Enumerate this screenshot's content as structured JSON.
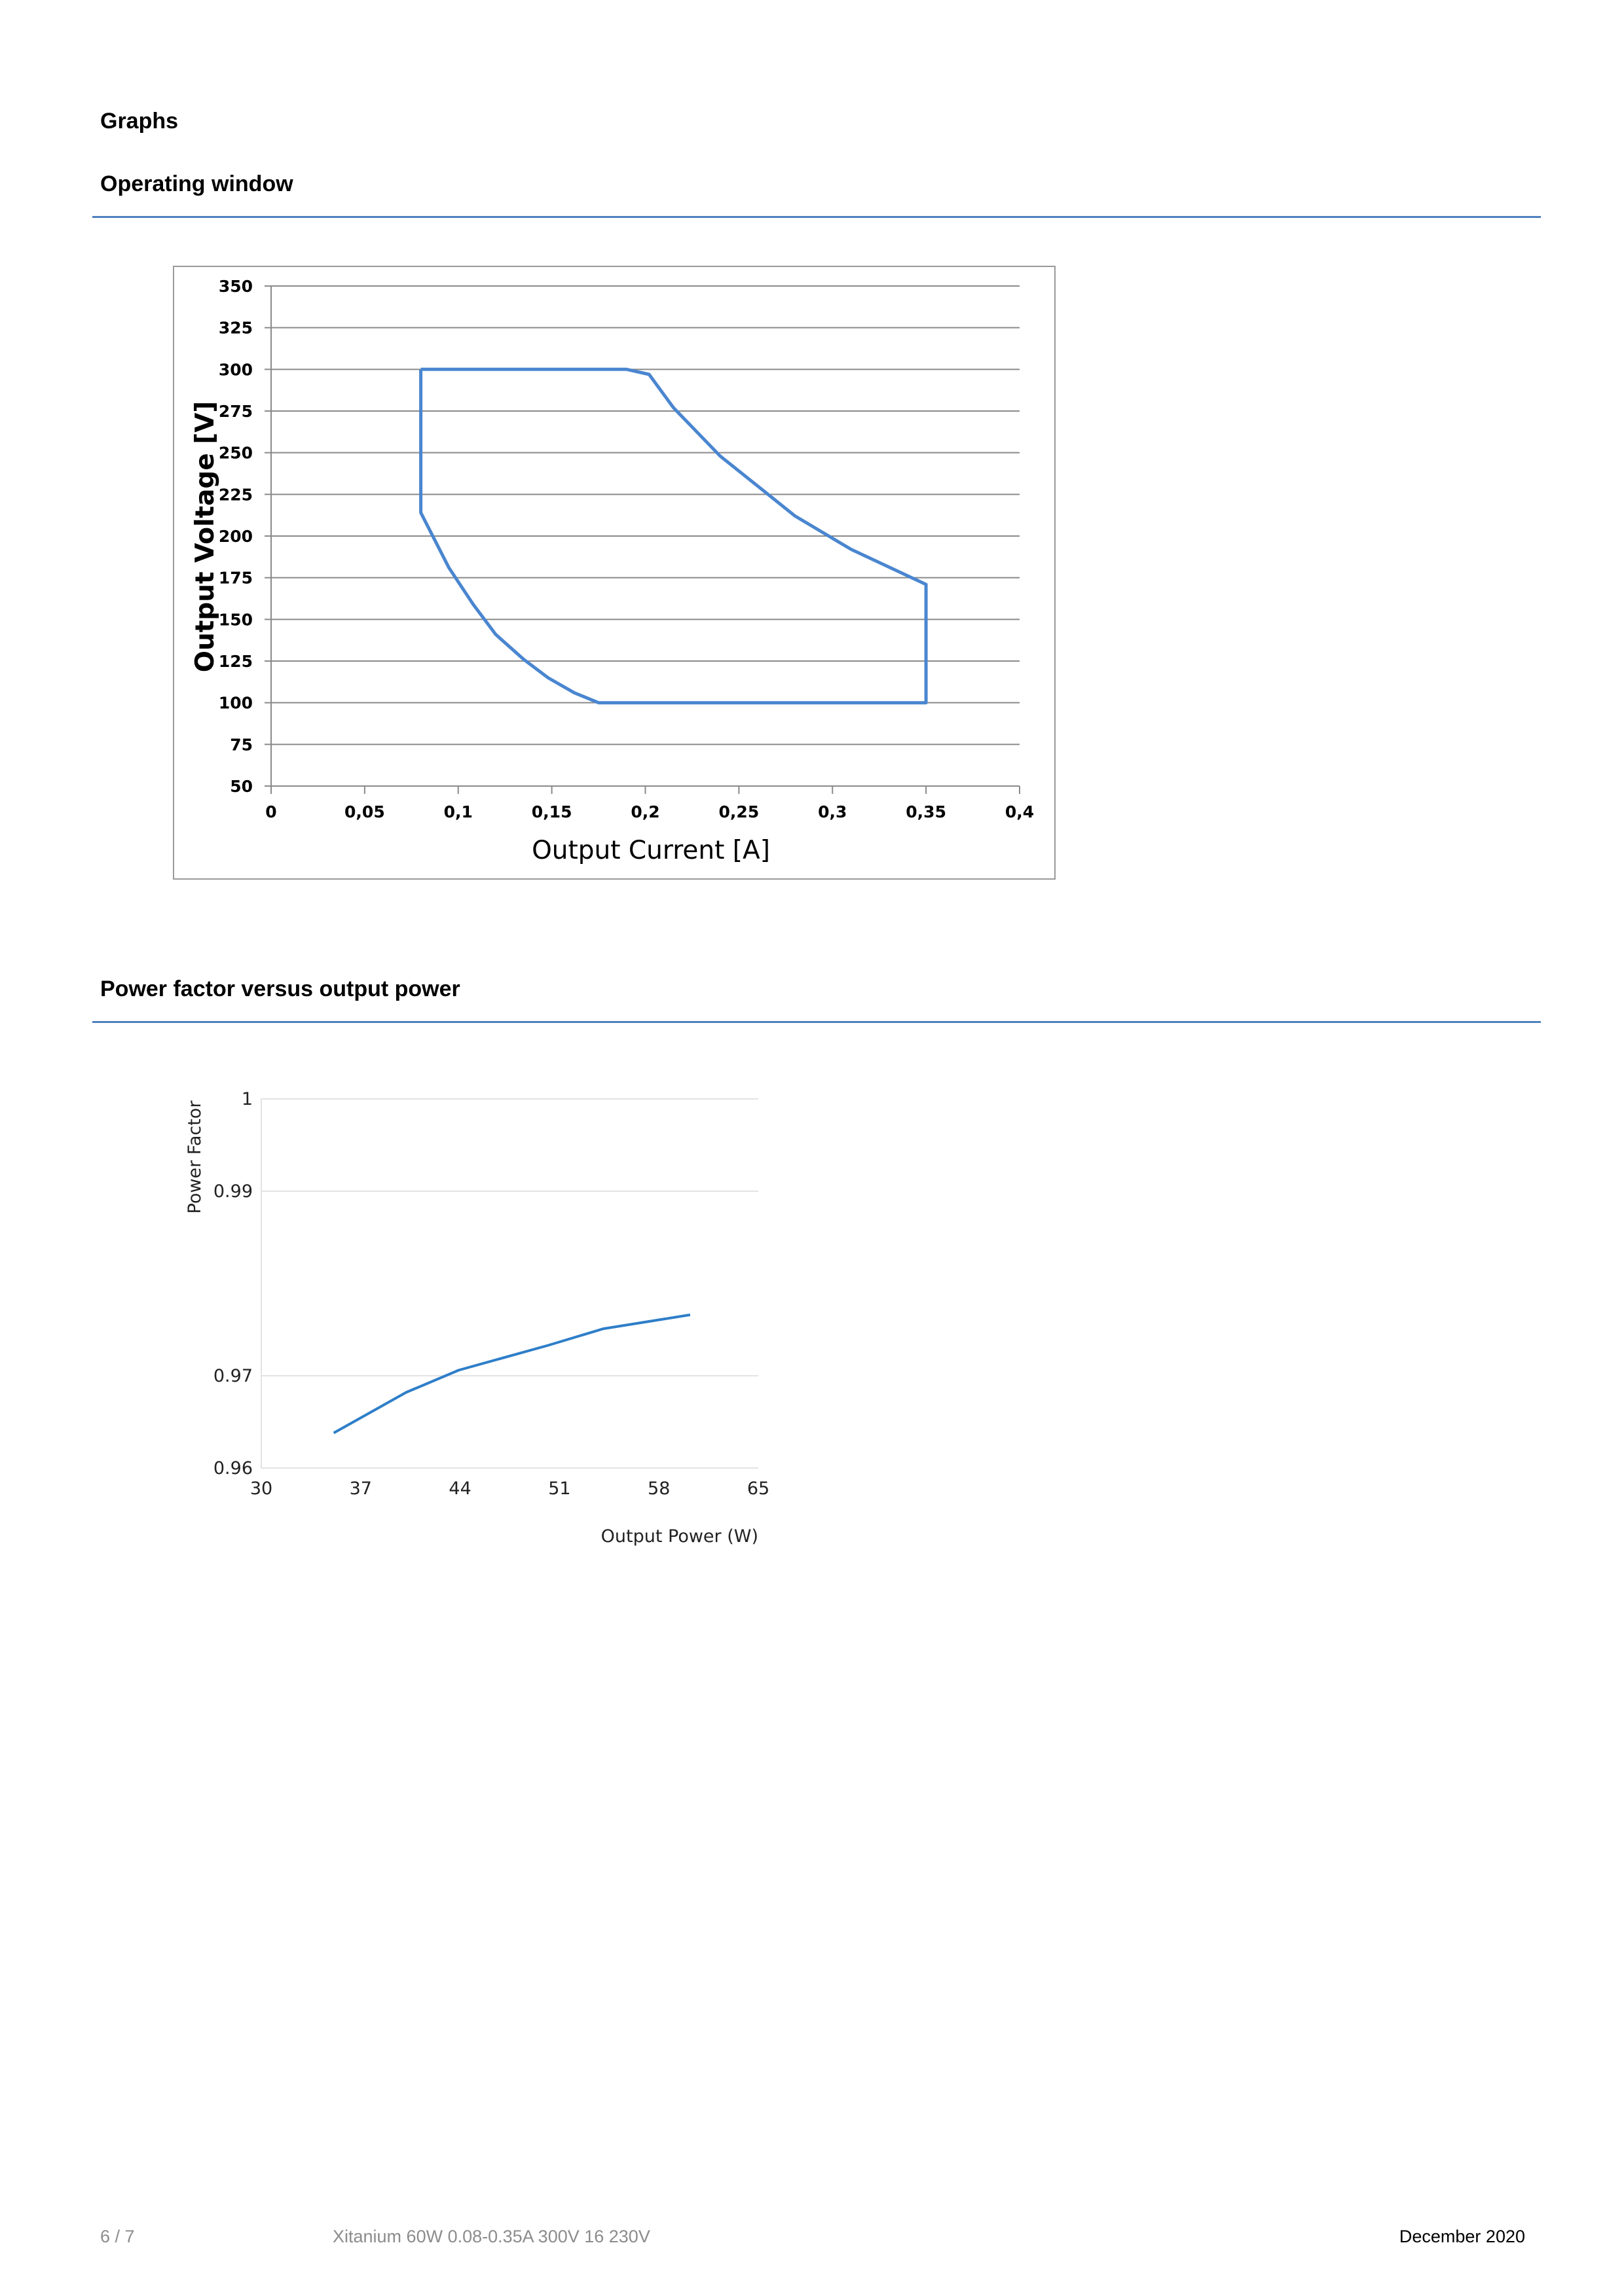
{
  "page": {
    "heading": "Graphs",
    "sections": [
      {
        "title": "Operating window"
      },
      {
        "title": "Power factor versus output power"
      }
    ]
  },
  "chart_data": [
    {
      "type": "line",
      "title": "",
      "xlabel": "Output Current [A]",
      "ylabel": "Output Voltage [V]",
      "xlim": [
        0,
        0.4
      ],
      "ylim": [
        50,
        350
      ],
      "x_ticks": [
        "0",
        "0,05",
        "0,1",
        "0,15",
        "0,2",
        "0,25",
        "0,3",
        "0,35",
        "0,4"
      ],
      "y_ticks": [
        "50",
        "75",
        "100",
        "125",
        "150",
        "175",
        "200",
        "225",
        "250",
        "275",
        "300",
        "325",
        "350"
      ],
      "grid": true,
      "line_color": "#4a86d0",
      "series": [
        {
          "x": [
            0.08,
            0.19,
            0.202,
            0.215,
            0.24,
            0.26,
            0.28,
            0.31,
            0.35,
            0.35,
            0.175,
            0.162,
            0.148,
            0.135,
            0.12,
            0.108,
            0.095,
            0.08,
            0.08
          ],
          "y": [
            300,
            300,
            297,
            277,
            248,
            230,
            212,
            192,
            171,
            100,
            100,
            106,
            115,
            126,
            141,
            159,
            181,
            214,
            300
          ]
        }
      ]
    },
    {
      "type": "line",
      "title": "",
      "xlabel": "Output Power (W)",
      "ylabel": "Power Factor",
      "xlim": [
        30,
        65
      ],
      "ylim": [
        0.96,
        1
      ],
      "x_ticks": [
        "30",
        "37",
        "44",
        "51",
        "58",
        "65"
      ],
      "y_ticks": [
        "0.96",
        "0.97",
        "0.99",
        "1"
      ],
      "y_tick_values": [
        0.96,
        0.97,
        0.99,
        1
      ],
      "grid": true,
      "line_color": "#2e7ec8",
      "series": [
        {
          "x": [
            35.1,
            40.2,
            43.9,
            50.2,
            54.1,
            60.2
          ],
          "y": [
            0.9638,
            0.9682,
            0.9706,
            0.9733,
            0.9751,
            0.9766
          ]
        }
      ]
    }
  ],
  "footer": {
    "page_number": "6 / 7",
    "product": "Xitanium 60W 0.08-0.35A 300V 16 230V",
    "date": "December 2020"
  }
}
